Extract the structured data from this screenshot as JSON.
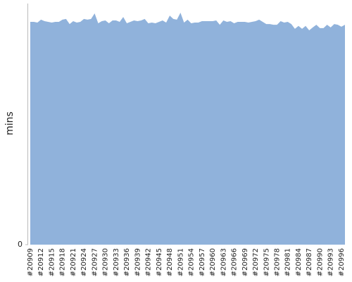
{
  "chart_data": {
    "type": "area",
    "y_label": "mins",
    "color": "#90b2db",
    "categories": [
      "#20909",
      null,
      null,
      "#20912",
      null,
      null,
      "#20915",
      null,
      null,
      "#20918",
      null,
      null,
      "#20921",
      null,
      null,
      "#20924",
      null,
      null,
      "#20927",
      null,
      null,
      "#20930",
      null,
      null,
      "#20933",
      null,
      null,
      "#20936",
      null,
      null,
      "#20939",
      null,
      null,
      "#20942",
      null,
      null,
      "#20945",
      null,
      null,
      "#20948",
      null,
      null,
      "#20951",
      null,
      null,
      "#20954",
      null,
      null,
      "#20957",
      null,
      null,
      "#20960",
      null,
      null,
      "#20963",
      null,
      null,
      "#20966",
      null,
      null,
      "#20969",
      null,
      null,
      "#20972",
      null,
      null,
      "#20975",
      null,
      null,
      "#20978",
      null,
      null,
      "#20981",
      null,
      null,
      "#20984",
      null,
      null,
      "#20987",
      null,
      null,
      "#20990",
      null,
      null,
      "#20993",
      null,
      null,
      "#20996",
      null
    ],
    "values": [
      92.4,
      92.4,
      92.1,
      93.3,
      92.7,
      92.4,
      92.1,
      92.4,
      92.4,
      93.3,
      93.6,
      91.5,
      92.7,
      92.1,
      92.4,
      93.6,
      93.3,
      93.6,
      95.9,
      91.8,
      92.7,
      93.0,
      91.8,
      93.0,
      93.0,
      92.4,
      94.4,
      91.8,
      92.4,
      93.0,
      92.7,
      93.0,
      93.6,
      91.8,
      92.1,
      91.8,
      92.4,
      93.0,
      92.1,
      95.0,
      93.6,
      93.3,
      96.2,
      92.1,
      93.3,
      91.8,
      92.1,
      92.1,
      92.7,
      92.7,
      92.7,
      92.7,
      93.0,
      91.2,
      93.0,
      92.4,
      92.7,
      91.8,
      92.4,
      92.4,
      92.4,
      92.1,
      92.4,
      92.7,
      93.3,
      92.4,
      91.5,
      91.5,
      91.2,
      91.2,
      92.7,
      92.1,
      92.4,
      91.5,
      89.5,
      90.7,
      89.5,
      90.7,
      88.9,
      90.1,
      91.2,
      89.8,
      89.8,
      91.2,
      90.1,
      91.5,
      91.2,
      90.4,
      91.2
    ],
    "ylim": [
      0,
      100
    ],
    "yticks": [
      0
    ]
  }
}
